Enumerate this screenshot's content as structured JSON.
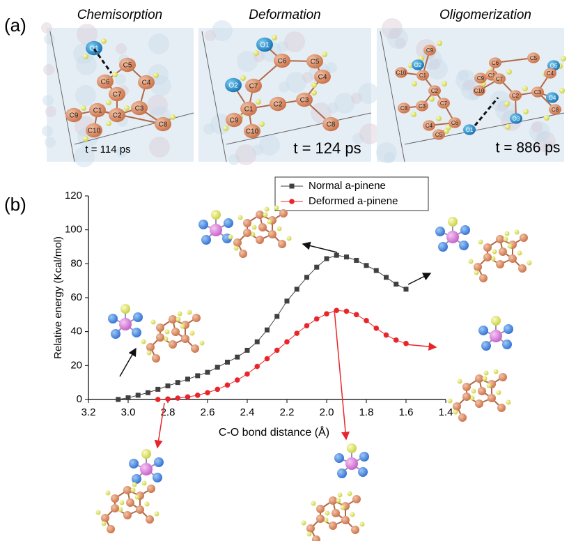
{
  "panel_a": {
    "label": "(a)",
    "panels": [
      {
        "title": "Chemisorption",
        "time": "t = 114 ps",
        "atoms": [
          "O1",
          "C5",
          "C6",
          "C7",
          "C4",
          "C1",
          "C2",
          "C3",
          "C9",
          "C10",
          "C8"
        ]
      },
      {
        "title": "Deformation",
        "time": "t = 124 ps",
        "atoms": [
          "O1",
          "C6",
          "C5",
          "C4",
          "O2",
          "C7",
          "C1",
          "C2",
          "C3",
          "C9",
          "C10",
          "C8"
        ]
      },
      {
        "title": "Oligomerization",
        "time": "t = 886 ps",
        "atoms": [
          "C9",
          "O2",
          "C10",
          "C1",
          "C9",
          "C5",
          "O5",
          "C6",
          "C4",
          "C1",
          "C7",
          "C10",
          "C2",
          "C3",
          "O4",
          "C8",
          "C2",
          "C7",
          "C3",
          "C8",
          "C4",
          "C6",
          "C5",
          "O1",
          "O3"
        ]
      }
    ]
  },
  "chart_data": {
    "type": "line",
    "panel_label": "(b)",
    "x_label": "C-O bond distance (Å)",
    "y_label": "Relative energy (Kcal/mol)",
    "xlim": [
      3.2,
      1.4
    ],
    "ylim": [
      0,
      120
    ],
    "xticks": [
      3.2,
      {
        "value": 3.0,
        "label": "3.0"
      },
      2.8,
      2.6,
      2.4,
      2.2,
      {
        "value": 2.0,
        "label": "2.0"
      },
      1.8,
      1.6,
      1.4
    ],
    "yticks": [
      0,
      20,
      40,
      60,
      80,
      100,
      120
    ],
    "legend": "top-center",
    "series": [
      {
        "name": "Normal a-pinene",
        "color": "#404040",
        "marker": "square",
        "x": [
          3.05,
          3.0,
          2.95,
          2.9,
          2.85,
          2.8,
          2.75,
          2.7,
          2.65,
          2.6,
          2.55,
          2.5,
          2.45,
          2.4,
          2.35,
          2.3,
          2.25,
          2.2,
          2.15,
          2.1,
          2.05,
          2.0,
          1.95,
          1.9,
          1.85,
          1.8,
          1.75,
          1.7,
          1.65,
          1.6
        ],
        "values": [
          0,
          1,
          2.5,
          4,
          6,
          8,
          10,
          12,
          14,
          16,
          19,
          22,
          25,
          29,
          34,
          41,
          49,
          58,
          65,
          72,
          78,
          83,
          85,
          84,
          82,
          79,
          76,
          72,
          68,
          65
        ]
      },
      {
        "name": "Deformed a-pinene",
        "color": "#e8262a",
        "marker": "circle",
        "x": [
          2.85,
          2.8,
          2.75,
          2.7,
          2.65,
          2.6,
          2.55,
          2.5,
          2.45,
          2.4,
          2.35,
          2.3,
          2.25,
          2.2,
          2.15,
          2.1,
          2.05,
          2.0,
          1.95,
          1.9,
          1.85,
          1.8,
          1.75,
          1.7,
          1.65,
          1.6
        ],
        "values": [
          0,
          0.3,
          0.8,
          1.5,
          2.5,
          4,
          6,
          8.5,
          11.5,
          15,
          19.5,
          24,
          29,
          34,
          39,
          43.5,
          47.5,
          50.5,
          52.5,
          52,
          50,
          46.5,
          42,
          38,
          35,
          33
        ]
      }
    ]
  }
}
